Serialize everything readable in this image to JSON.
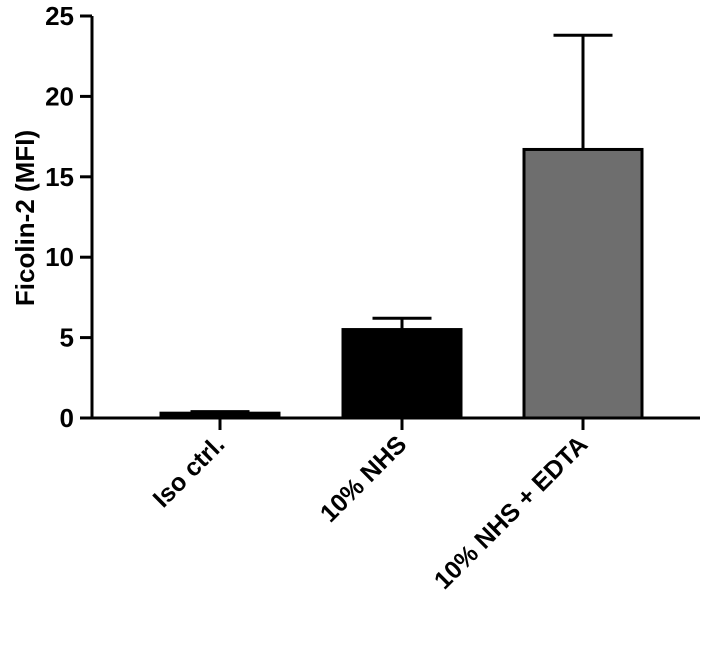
{
  "chart_data": {
    "type": "bar",
    "title": "",
    "xlabel": "",
    "ylabel": "Ficolin-2 (MFI)",
    "ylim": [
      0,
      25
    ],
    "yticks": [
      0,
      5,
      10,
      15,
      20,
      25
    ],
    "grid": false,
    "legend": "none",
    "categories": [
      "Iso ctrl.",
      "10% NHS",
      "10% NHS + EDTA"
    ],
    "values": [
      0.3,
      5.5,
      16.7
    ],
    "error_upper": [
      0.1,
      0.7,
      7.1
    ],
    "bar_colors": [
      "#000000",
      "#000000",
      "#6e6e6e"
    ]
  }
}
